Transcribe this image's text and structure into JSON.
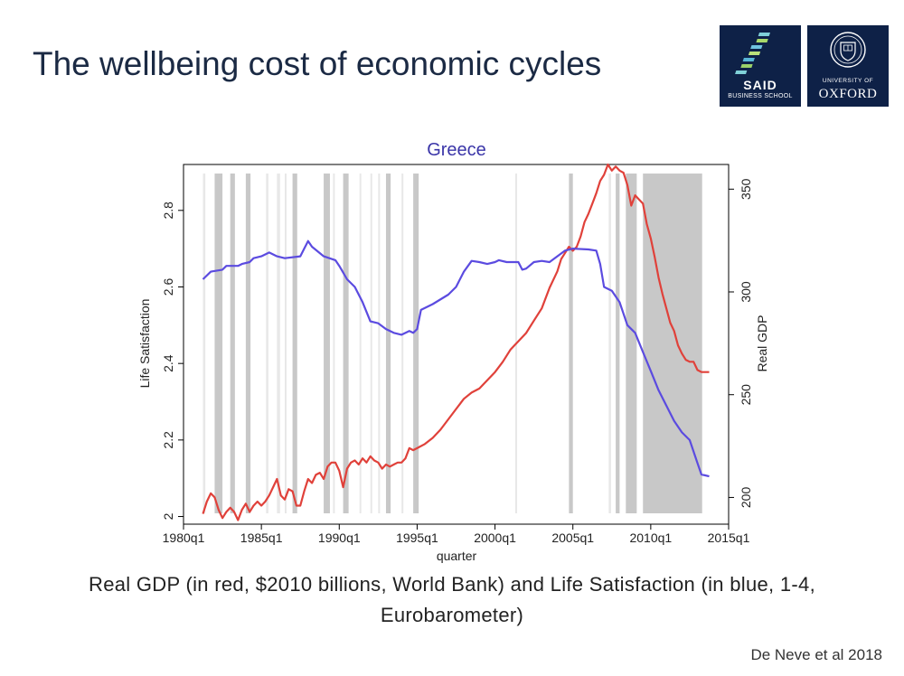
{
  "slide": {
    "title": "The wellbeing cost of economic cycles",
    "caption": "Real GDP (in red, $2010 billions, World Bank) and Life Satisfaction (in blue, 1-4, Eurobarometer)",
    "credit": "De Neve et al 2018"
  },
  "logos": {
    "said_name": "SAID",
    "said_sub": "BUSINESS SCHOOL",
    "oxford_univ": "UNIVERSITY OF",
    "oxford_name": "OXFORD"
  },
  "colors": {
    "gdp": "#e0413a",
    "life": "#5b4be0",
    "recession": "#c8c8c8",
    "navy": "#0e2147"
  },
  "chart_data": {
    "type": "line",
    "title": "Greece",
    "xlabel": "quarter",
    "ylabel_left": "Life Satisfaction",
    "ylabel_right": "Real GDP",
    "xlim": [
      1980.0,
      2015.0
    ],
    "ylim_left": [
      1.98,
      2.92
    ],
    "ylim_right": [
      187,
      362
    ],
    "x_ticks": [
      {
        "x": 1980.0,
        "label": "1980q1"
      },
      {
        "x": 1985.0,
        "label": "1985q1"
      },
      {
        "x": 1990.0,
        "label": "1990q1"
      },
      {
        "x": 1995.0,
        "label": "1995q1"
      },
      {
        "x": 2000.0,
        "label": "2000q1"
      },
      {
        "x": 2005.0,
        "label": "2005q1"
      },
      {
        "x": 2010.0,
        "label": "2010q1"
      },
      {
        "x": 2015.0,
        "label": "2015q1"
      }
    ],
    "y_ticks_left": [
      {
        "v": 2.0,
        "label": "2"
      },
      {
        "v": 2.2,
        "label": "2.2"
      },
      {
        "v": 2.4,
        "label": "2.4"
      },
      {
        "v": 2.6,
        "label": "2.6"
      },
      {
        "v": 2.8,
        "label": "2.8"
      }
    ],
    "y_ticks_right": [
      {
        "v": 200,
        "label": "200"
      },
      {
        "v": 250,
        "label": "250"
      },
      {
        "v": 300,
        "label": "300"
      },
      {
        "v": 350,
        "label": "350"
      }
    ],
    "recession_shading": [
      {
        "start": 1981.25,
        "end": 1981.4,
        "shade": "light"
      },
      {
        "start": 1982.0,
        "end": 1982.5,
        "shade": "dark"
      },
      {
        "start": 1983.0,
        "end": 1983.3,
        "shade": "dark"
      },
      {
        "start": 1984.0,
        "end": 1984.3,
        "shade": "dark"
      },
      {
        "start": 1985.3,
        "end": 1985.45,
        "shade": "light"
      },
      {
        "start": 1986.0,
        "end": 1986.2,
        "shade": "light"
      },
      {
        "start": 1986.5,
        "end": 1986.6,
        "shade": "light"
      },
      {
        "start": 1987.0,
        "end": 1987.3,
        "shade": "dark"
      },
      {
        "start": 1989.0,
        "end": 1989.4,
        "shade": "dark"
      },
      {
        "start": 1989.6,
        "end": 1989.7,
        "shade": "light"
      },
      {
        "start": 1990.25,
        "end": 1990.6,
        "shade": "dark"
      },
      {
        "start": 1991.3,
        "end": 1991.4,
        "shade": "light"
      },
      {
        "start": 1992.0,
        "end": 1992.1,
        "shade": "light"
      },
      {
        "start": 1992.5,
        "end": 1992.6,
        "shade": "light"
      },
      {
        "start": 1993.0,
        "end": 1993.3,
        "shade": "dark"
      },
      {
        "start": 1994.0,
        "end": 1994.1,
        "shade": "light"
      },
      {
        "start": 1994.75,
        "end": 1995.1,
        "shade": "dark"
      },
      {
        "start": 2001.3,
        "end": 2001.4,
        "shade": "light"
      },
      {
        "start": 2004.75,
        "end": 2005.0,
        "shade": "dark"
      },
      {
        "start": 2007.3,
        "end": 2007.45,
        "shade": "light"
      },
      {
        "start": 2007.75,
        "end": 2008.0,
        "shade": "dark"
      },
      {
        "start": 2008.4,
        "end": 2009.1,
        "shade": "dark"
      },
      {
        "start": 2009.5,
        "end": 2013.3,
        "shade": "dark"
      }
    ],
    "series": [
      {
        "name": "Real GDP",
        "axis": "right",
        "points": [
          [
            1981.25,
            192
          ],
          [
            1981.5,
            198
          ],
          [
            1981.75,
            202
          ],
          [
            1982.0,
            200
          ],
          [
            1982.25,
            194
          ],
          [
            1982.5,
            190
          ],
          [
            1982.75,
            193
          ],
          [
            1983.0,
            195
          ],
          [
            1983.25,
            193
          ],
          [
            1983.5,
            189
          ],
          [
            1983.75,
            194
          ],
          [
            1984.0,
            197
          ],
          [
            1984.25,
            193
          ],
          [
            1984.5,
            196
          ],
          [
            1984.75,
            198
          ],
          [
            1985.0,
            196
          ],
          [
            1985.25,
            198
          ],
          [
            1985.5,
            201
          ],
          [
            1985.75,
            205
          ],
          [
            1986.0,
            209
          ],
          [
            1986.25,
            201
          ],
          [
            1986.5,
            199
          ],
          [
            1986.75,
            204
          ],
          [
            1987.0,
            203
          ],
          [
            1987.25,
            196
          ],
          [
            1987.5,
            196
          ],
          [
            1987.75,
            203
          ],
          [
            1988.0,
            209
          ],
          [
            1988.25,
            207
          ],
          [
            1988.5,
            211
          ],
          [
            1988.75,
            212
          ],
          [
            1989.0,
            209
          ],
          [
            1989.25,
            215
          ],
          [
            1989.5,
            217
          ],
          [
            1989.75,
            217
          ],
          [
            1990.0,
            213
          ],
          [
            1990.25,
            205
          ],
          [
            1990.5,
            214
          ],
          [
            1990.75,
            217
          ],
          [
            1991.0,
            218
          ],
          [
            1991.25,
            216
          ],
          [
            1991.5,
            219
          ],
          [
            1991.75,
            217
          ],
          [
            1992.0,
            220
          ],
          [
            1992.25,
            218
          ],
          [
            1992.5,
            217
          ],
          [
            1992.75,
            214
          ],
          [
            1993.0,
            216
          ],
          [
            1993.25,
            215
          ],
          [
            1993.5,
            216
          ],
          [
            1993.75,
            217
          ],
          [
            1994.0,
            217
          ],
          [
            1994.25,
            219
          ],
          [
            1994.5,
            224
          ],
          [
            1994.75,
            223
          ],
          [
            1995.0,
            224
          ],
          [
            1995.5,
            226
          ],
          [
            1996.0,
            229
          ],
          [
            1996.5,
            233
          ],
          [
            1997.0,
            238
          ],
          [
            1997.5,
            243
          ],
          [
            1998.0,
            248
          ],
          [
            1998.5,
            251
          ],
          [
            1999.0,
            253
          ],
          [
            1999.5,
            257
          ],
          [
            2000.0,
            261
          ],
          [
            2000.5,
            266
          ],
          [
            2001.0,
            272
          ],
          [
            2001.5,
            276
          ],
          [
            2002.0,
            280
          ],
          [
            2002.5,
            286
          ],
          [
            2003.0,
            292
          ],
          [
            2003.5,
            302
          ],
          [
            2004.0,
            310
          ],
          [
            2004.25,
            316
          ],
          [
            2004.5,
            319
          ],
          [
            2004.75,
            322
          ],
          [
            2005.0,
            320
          ],
          [
            2005.25,
            322
          ],
          [
            2005.5,
            327
          ],
          [
            2005.75,
            334
          ],
          [
            2006.0,
            338
          ],
          [
            2006.25,
            343
          ],
          [
            2006.5,
            348
          ],
          [
            2006.75,
            354
          ],
          [
            2007.0,
            357
          ],
          [
            2007.25,
            362
          ],
          [
            2007.5,
            359
          ],
          [
            2007.75,
            361
          ],
          [
            2008.0,
            359
          ],
          [
            2008.25,
            358
          ],
          [
            2008.5,
            352
          ],
          [
            2008.75,
            342
          ],
          [
            2009.0,
            347
          ],
          [
            2009.25,
            345
          ],
          [
            2009.5,
            343
          ],
          [
            2009.75,
            333
          ],
          [
            2010.0,
            326
          ],
          [
            2010.25,
            317
          ],
          [
            2010.5,
            307
          ],
          [
            2010.75,
            299
          ],
          [
            2011.0,
            292
          ],
          [
            2011.25,
            285
          ],
          [
            2011.5,
            281
          ],
          [
            2011.75,
            274
          ],
          [
            2012.0,
            270
          ],
          [
            2012.25,
            267
          ],
          [
            2012.5,
            266
          ],
          [
            2012.75,
            266
          ],
          [
            2013.0,
            262
          ],
          [
            2013.25,
            261
          ],
          [
            2013.5,
            261
          ],
          [
            2013.75,
            261
          ]
        ]
      },
      {
        "name": "Life Satisfaction",
        "axis": "left",
        "points": [
          [
            1981.25,
            2.62
          ],
          [
            1981.75,
            2.64
          ],
          [
            1982.5,
            2.645
          ],
          [
            1982.75,
            2.655
          ],
          [
            1983.5,
            2.655
          ],
          [
            1983.75,
            2.66
          ],
          [
            1984.25,
            2.665
          ],
          [
            1984.5,
            2.675
          ],
          [
            1985.0,
            2.68
          ],
          [
            1985.5,
            2.69
          ],
          [
            1986.0,
            2.68
          ],
          [
            1986.5,
            2.675
          ],
          [
            1987.5,
            2.68
          ],
          [
            1987.75,
            2.7
          ],
          [
            1988.0,
            2.72
          ],
          [
            1988.25,
            2.705
          ],
          [
            1989.0,
            2.68
          ],
          [
            1989.75,
            2.67
          ],
          [
            1990.0,
            2.655
          ],
          [
            1990.5,
            2.62
          ],
          [
            1991.0,
            2.6
          ],
          [
            1991.5,
            2.56
          ],
          [
            1992.0,
            2.51
          ],
          [
            1992.5,
            2.505
          ],
          [
            1993.0,
            2.49
          ],
          [
            1993.5,
            2.48
          ],
          [
            1994.0,
            2.475
          ],
          [
            1994.5,
            2.485
          ],
          [
            1994.75,
            2.48
          ],
          [
            1995.0,
            2.49
          ],
          [
            1995.25,
            2.54
          ],
          [
            1996.0,
            2.555
          ],
          [
            1997.0,
            2.58
          ],
          [
            1997.5,
            2.6
          ],
          [
            1998.0,
            2.64
          ],
          [
            1998.5,
            2.668
          ],
          [
            1999.0,
            2.665
          ],
          [
            1999.5,
            2.66
          ],
          [
            2000.0,
            2.665
          ],
          [
            2000.25,
            2.67
          ],
          [
            2000.75,
            2.665
          ],
          [
            2001.5,
            2.665
          ],
          [
            2001.75,
            2.645
          ],
          [
            2002.0,
            2.648
          ],
          [
            2002.5,
            2.665
          ],
          [
            2003.0,
            2.668
          ],
          [
            2003.5,
            2.665
          ],
          [
            2004.0,
            2.68
          ],
          [
            2004.5,
            2.695
          ],
          [
            2005.0,
            2.7
          ],
          [
            2006.0,
            2.698
          ],
          [
            2006.5,
            2.695
          ],
          [
            2006.75,
            2.66
          ],
          [
            2007.0,
            2.6
          ],
          [
            2007.5,
            2.59
          ],
          [
            2008.0,
            2.56
          ],
          [
            2008.5,
            2.5
          ],
          [
            2009.0,
            2.48
          ],
          [
            2009.5,
            2.43
          ],
          [
            2010.0,
            2.38
          ],
          [
            2010.5,
            2.33
          ],
          [
            2011.0,
            2.29
          ],
          [
            2011.5,
            2.25
          ],
          [
            2012.0,
            2.22
          ],
          [
            2012.5,
            2.2
          ],
          [
            2013.0,
            2.14
          ],
          [
            2013.25,
            2.11
          ],
          [
            2013.75,
            2.105
          ]
        ]
      }
    ]
  }
}
